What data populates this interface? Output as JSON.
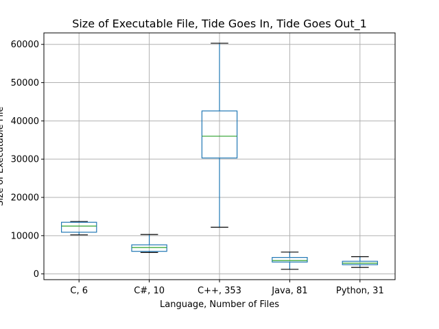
{
  "chart_data": {
    "type": "box",
    "title": "Size of Executable File, Tide Goes In, Tide Goes Out_1",
    "xlabel": "Language, Number of Files",
    "ylabel": "Size of Executable File",
    "ylim": [
      -1500,
      63000
    ],
    "yticks": [
      0,
      10000,
      20000,
      30000,
      40000,
      50000,
      60000
    ],
    "ytick_labels": [
      "0",
      "10000",
      "20000",
      "30000",
      "40000",
      "50000",
      "60000"
    ],
    "grid": true,
    "categories": [
      "C, 6",
      "C#, 10",
      "C++, 353",
      "Java, 81",
      "Python, 31"
    ],
    "boxes": [
      {
        "whisker_low": 10200,
        "q1": 10900,
        "median": 12500,
        "q3": 13500,
        "whisker_high": 13700
      },
      {
        "whisker_low": 5600,
        "q1": 5900,
        "median": 6900,
        "q3": 7600,
        "whisker_high": 10300
      },
      {
        "whisker_low": 12200,
        "q1": 30300,
        "median": 36000,
        "q3": 42600,
        "whisker_high": 60300
      },
      {
        "whisker_low": 1200,
        "q1": 3100,
        "median": 3500,
        "q3": 4300,
        "whisker_high": 5700
      },
      {
        "whisker_low": 1700,
        "q1": 2400,
        "median": 2800,
        "q3": 3300,
        "whisker_high": 4500
      }
    ],
    "colors": {
      "box": "#1f77b4",
      "median": "#2ca02c",
      "cap": "#000000",
      "grid": "#b0b0b0",
      "axis": "#000000"
    }
  }
}
